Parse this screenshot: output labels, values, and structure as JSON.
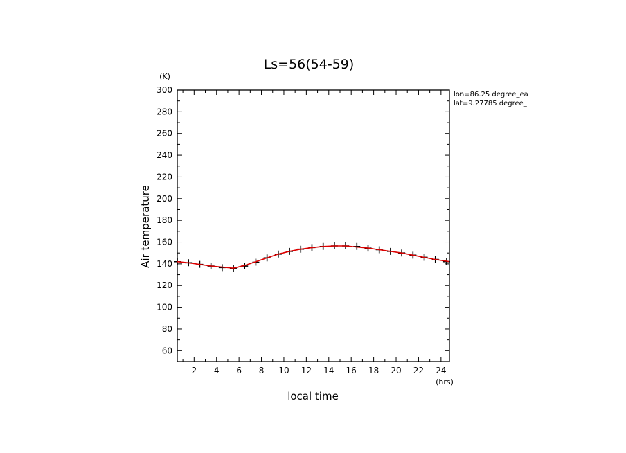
{
  "chart_data": {
    "type": "line",
    "title": "Ls=56(54-59)",
    "xlabel": "local time",
    "ylabel": "Air temperature",
    "xunit": "(hrs)",
    "yunit": "(K)",
    "xlim": [
      0.5,
      24.75
    ],
    "ylim": [
      50,
      300
    ],
    "xticks": [
      2,
      4,
      6,
      8,
      10,
      12,
      14,
      16,
      18,
      20,
      22,
      24
    ],
    "yticks": [
      60,
      80,
      100,
      120,
      140,
      160,
      180,
      200,
      220,
      240,
      260,
      280,
      300
    ],
    "annotations": [
      "lon=86.25 degree_ea",
      "lat=9.27785 degree_"
    ],
    "line_color": "#dd0000",
    "marker_color": "#000000",
    "series": [
      {
        "marker": "plus",
        "x": [
          0.5,
          1.5,
          2.5,
          3.5,
          4.5,
          5.5,
          6.5,
          7.5,
          8.5,
          9.5,
          10.5,
          11.5,
          12.5,
          13.5,
          14.5,
          15.5,
          16.5,
          17.5,
          18.5,
          19.5,
          20.5,
          21.5,
          22.5,
          23.5,
          24.5
        ],
        "y": [
          142,
          141,
          139.5,
          138,
          136.5,
          135.5,
          138,
          141.5,
          145.5,
          149,
          151.5,
          153.5,
          155,
          156,
          156.5,
          156.5,
          156,
          154.5,
          153,
          151.5,
          150,
          148,
          146,
          144,
          142
        ]
      },
      {
        "marker": "none",
        "x": [
          0.5,
          1.5,
          2.5,
          3.5,
          4.5,
          5.5,
          6.5,
          7.5,
          8.5,
          9.5,
          10.5,
          11.5,
          12.5,
          13.5,
          14.5,
          15.5,
          16.5,
          17.5,
          18.5,
          19.5,
          20.5,
          21.5,
          22.5,
          23.5,
          24.5,
          24.75
        ],
        "y": [
          142,
          141,
          139.5,
          138,
          137,
          136,
          138.5,
          142,
          145.5,
          149,
          151.5,
          153.5,
          155,
          156,
          156.5,
          156.5,
          155.5,
          154.5,
          153,
          151.5,
          150,
          148,
          146,
          144,
          142.5,
          142
        ]
      }
    ]
  }
}
